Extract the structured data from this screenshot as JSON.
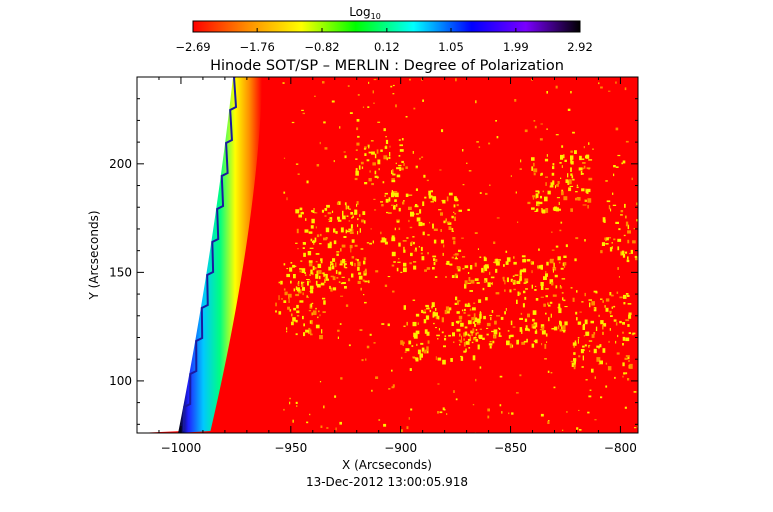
{
  "chart_data": {
    "type": "heatmap",
    "title": "Hinode SOT/SP – MERLIN : Degree of Polarization",
    "xlabel": "X (Arcseconds)",
    "ylabel": "Y (Arcseconds)",
    "xlim": [
      -1020,
      -792
    ],
    "ylim": [
      76,
      240
    ],
    "x_ticks": [
      -1000,
      -950,
      -900,
      -850,
      -800
    ],
    "x_tick_labels": [
      "−1000",
      "−950",
      "−900",
      "−850",
      "−800"
    ],
    "y_ticks": [
      100,
      150,
      200
    ],
    "y_tick_labels": [
      "100",
      "150",
      "200"
    ],
    "colorbar": {
      "label": "Log",
      "label_subscript": "10",
      "ticks": [
        -2.69,
        -1.76,
        -0.82,
        0.12,
        1.05,
        1.99,
        2.92
      ],
      "tick_labels": [
        "−2.69",
        "−1.76",
        "−0.82",
        "0.12",
        "1.05",
        "1.99",
        "2.92"
      ],
      "range": [
        -2.69,
        2.92
      ],
      "colormap": [
        "#ff0000",
        "#ff8c00",
        "#ffff00",
        "#00ff00",
        "#00ffff",
        "#0000ff",
        "#7a00ff",
        "#000000"
      ]
    },
    "background_value_color": "#ff0000",
    "feature_color": "#ffee00",
    "limb_colors": [
      "#000000",
      "#2020ff",
      "#00c8ff",
      "#00ff80",
      "#ffff00",
      "#ff8c00",
      "#ff0000"
    ],
    "off_disk_color": "#ffffff",
    "grid": false,
    "legend": "colorbar-top"
  },
  "timestamp": "13-Dec-2012 13:00:05.918"
}
